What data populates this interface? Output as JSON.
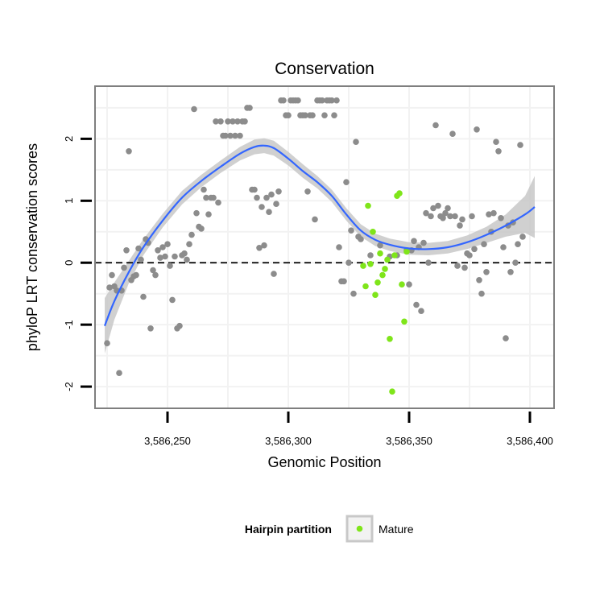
{
  "chart_data": {
    "type": "scatter",
    "title": "Conservation",
    "xlabel": "Genomic Position",
    "ylabel": "phyloP LRT conservation scores",
    "xlim": [
      3586220,
      3586410
    ],
    "ylim": [
      -2.35,
      2.85
    ],
    "x_ticks": [
      3586250,
      3586300,
      3586350,
      3586400
    ],
    "x_tick_labels": [
      "3,586,250",
      "3,586,300",
      "3,586,350",
      "3,586,400"
    ],
    "y_ticks": [
      -2,
      -1,
      0,
      1,
      2
    ],
    "y_tick_labels": [
      "-2",
      "-1",
      "0",
      "1",
      "2"
    ],
    "reference_line": {
      "y": 0,
      "style": "dashed",
      "color": "#000000"
    },
    "grid": true,
    "legend": {
      "title": "Hairpin partition",
      "placement": "bottom",
      "items": [
        {
          "label": "Mature",
          "color": "#7fe51a"
        }
      ]
    },
    "colors": {
      "other": "#8c8c8c",
      "mature": "#7fe51a",
      "smooth": "#3366ff",
      "ribbon": "#c8c8c8",
      "panel_border": "#7f7f7f",
      "grid": "#f2f2f2"
    },
    "series": [
      {
        "role": "other",
        "points": [
          [
            3586225,
            -1.3
          ],
          [
            3586226,
            -0.4
          ],
          [
            3586227,
            -0.2
          ],
          [
            3586228,
            -0.38
          ],
          [
            3586229,
            -0.45
          ],
          [
            3586230,
            -1.78
          ],
          [
            3586231,
            -0.45
          ],
          [
            3586232,
            -0.08
          ],
          [
            3586233,
            0.2
          ],
          [
            3586234,
            1.8
          ],
          [
            3586235,
            -0.28
          ],
          [
            3586236,
            -0.22
          ],
          [
            3586237,
            -0.2
          ],
          [
            3586238,
            0.23
          ],
          [
            3586239,
            0.05
          ],
          [
            3586240,
            -0.55
          ],
          [
            3586241,
            0.38
          ],
          [
            3586242,
            0.32
          ],
          [
            3586243,
            -1.06
          ],
          [
            3586244,
            -0.12
          ],
          [
            3586245,
            -0.2
          ],
          [
            3586246,
            0.2
          ],
          [
            3586247,
            0.08
          ],
          [
            3586248,
            0.25
          ],
          [
            3586249,
            0.1
          ],
          [
            3586250,
            0.3
          ],
          [
            3586251,
            -0.05
          ],
          [
            3586252,
            -0.6
          ],
          [
            3586253,
            0.1
          ],
          [
            3586254,
            -1.06
          ],
          [
            3586255,
            -1.02
          ],
          [
            3586256,
            0.12
          ],
          [
            3586257,
            0.15
          ],
          [
            3586258,
            0.05
          ],
          [
            3586259,
            0.3
          ],
          [
            3586260,
            0.45
          ],
          [
            3586261,
            2.48
          ],
          [
            3586262,
            0.8
          ],
          [
            3586263,
            0.58
          ],
          [
            3586264,
            0.55
          ],
          [
            3586265,
            1.18
          ],
          [
            3586266,
            1.05
          ],
          [
            3586267,
            0.78
          ],
          [
            3586268,
            1.05
          ],
          [
            3586269,
            1.05
          ],
          [
            3586270,
            2.28
          ],
          [
            3586271,
            0.97
          ],
          [
            3586272,
            2.28
          ],
          [
            3586273,
            2.05
          ],
          [
            3586274,
            2.05
          ],
          [
            3586275,
            2.28
          ],
          [
            3586276,
            2.05
          ],
          [
            3586277,
            2.28
          ],
          [
            3586278,
            2.05
          ],
          [
            3586279,
            2.28
          ],
          [
            3586280,
            2.05
          ],
          [
            3586281,
            2.28
          ],
          [
            3586282,
            2.28
          ],
          [
            3586283,
            2.5
          ],
          [
            3586284,
            2.5
          ],
          [
            3586285,
            1.18
          ],
          [
            3586286,
            1.18
          ],
          [
            3586287,
            1.05
          ],
          [
            3586288,
            0.24
          ],
          [
            3586289,
            0.9
          ],
          [
            3586290,
            0.28
          ],
          [
            3586291,
            1.05
          ],
          [
            3586292,
            0.82
          ],
          [
            3586293,
            1.1
          ],
          [
            3586294,
            -0.18
          ],
          [
            3586295,
            0.95
          ],
          [
            3586296,
            1.15
          ],
          [
            3586297,
            2.62
          ],
          [
            3586298,
            2.62
          ],
          [
            3586299,
            2.38
          ],
          [
            3586300,
            2.38
          ],
          [
            3586301,
            2.62
          ],
          [
            3586302,
            2.62
          ],
          [
            3586303,
            2.62
          ],
          [
            3586304,
            2.62
          ],
          [
            3586305,
            2.38
          ],
          [
            3586306,
            2.38
          ],
          [
            3586307,
            2.38
          ],
          [
            3586308,
            1.15
          ],
          [
            3586309,
            2.38
          ],
          [
            3586310,
            2.38
          ],
          [
            3586311,
            0.7
          ],
          [
            3586312,
            2.62
          ],
          [
            3586313,
            2.62
          ],
          [
            3586314,
            2.62
          ],
          [
            3586315,
            2.38
          ],
          [
            3586316,
            2.62
          ],
          [
            3586317,
            2.62
          ],
          [
            3586318,
            2.62
          ],
          [
            3586319,
            2.38
          ],
          [
            3586320,
            2.62
          ],
          [
            3586321,
            0.25
          ],
          [
            3586322,
            -0.3
          ],
          [
            3586323,
            -0.3
          ],
          [
            3586324,
            1.3
          ],
          [
            3586325,
            0.0
          ],
          [
            3586326,
            0.52
          ],
          [
            3586327,
            -0.5
          ],
          [
            3586328,
            1.95
          ],
          [
            3586329,
            0.42
          ],
          [
            3586330,
            0.38
          ],
          [
            3586334,
            0.12
          ],
          [
            3586338,
            0.28
          ],
          [
            3586342,
            0.1
          ],
          [
            3586345,
            0.12
          ],
          [
            3586349,
            0.2
          ],
          [
            3586350,
            -0.35
          ],
          [
            3586351,
            0.2
          ],
          [
            3586352,
            0.35
          ],
          [
            3586353,
            -0.68
          ],
          [
            3586354,
            0.25
          ],
          [
            3586355,
            -0.78
          ],
          [
            3586356,
            0.32
          ],
          [
            3586357,
            0.8
          ],
          [
            3586358,
            0.0
          ],
          [
            3586359,
            0.75
          ],
          [
            3586360,
            0.88
          ],
          [
            3586361,
            2.22
          ],
          [
            3586362,
            0.92
          ],
          [
            3586363,
            0.75
          ],
          [
            3586364,
            0.72
          ],
          [
            3586365,
            0.8
          ],
          [
            3586366,
            0.88
          ],
          [
            3586367,
            0.75
          ],
          [
            3586368,
            2.08
          ],
          [
            3586369,
            0.75
          ],
          [
            3586370,
            -0.05
          ],
          [
            3586371,
            0.6
          ],
          [
            3586372,
            0.7
          ],
          [
            3586373,
            -0.08
          ],
          [
            3586374,
            0.15
          ],
          [
            3586375,
            0.12
          ],
          [
            3586376,
            0.75
          ],
          [
            3586377,
            0.22
          ],
          [
            3586378,
            2.15
          ],
          [
            3586379,
            -0.28
          ],
          [
            3586380,
            -0.5
          ],
          [
            3586381,
            0.3
          ],
          [
            3586382,
            -0.15
          ],
          [
            3586383,
            0.78
          ],
          [
            3586384,
            0.5
          ],
          [
            3586385,
            0.8
          ],
          [
            3586386,
            1.95
          ],
          [
            3586387,
            1.8
          ],
          [
            3586388,
            0.72
          ],
          [
            3586389,
            0.25
          ],
          [
            3586390,
            -1.22
          ],
          [
            3586391,
            0.6
          ],
          [
            3586392,
            -0.15
          ],
          [
            3586393,
            0.65
          ],
          [
            3586394,
            0.0
          ],
          [
            3586395,
            0.3
          ],
          [
            3586396,
            1.9
          ],
          [
            3586397,
            0.42
          ]
        ]
      },
      {
        "role": "mature",
        "name": "Mature",
        "points": [
          [
            3586331,
            -0.05
          ],
          [
            3586332,
            -0.38
          ],
          [
            3586333,
            0.92
          ],
          [
            3586334,
            -0.02
          ],
          [
            3586335,
            0.5
          ],
          [
            3586336,
            -0.52
          ],
          [
            3586337,
            -0.32
          ],
          [
            3586338,
            0.15
          ],
          [
            3586339,
            -0.2
          ],
          [
            3586340,
            -0.1
          ],
          [
            3586341,
            0.05
          ],
          [
            3586342,
            -1.23
          ],
          [
            3586343,
            -2.08
          ],
          [
            3586344,
            0.12
          ],
          [
            3586345,
            1.08
          ],
          [
            3586346,
            1.12
          ],
          [
            3586347,
            -0.35
          ],
          [
            3586348,
            -0.95
          ],
          [
            3586349,
            0.18
          ]
        ]
      }
    ],
    "smooth": {
      "method": "loess",
      "points": [
        [
          3586224,
          -1.02
        ],
        [
          3586228,
          -0.62
        ],
        [
          3586234,
          -0.15
        ],
        [
          3586240,
          0.25
        ],
        [
          3586248,
          0.68
        ],
        [
          3586256,
          1.05
        ],
        [
          3586264,
          1.32
        ],
        [
          3586272,
          1.55
        ],
        [
          3586280,
          1.76
        ],
        [
          3586286,
          1.87
        ],
        [
          3586290,
          1.89
        ],
        [
          3586294,
          1.85
        ],
        [
          3586300,
          1.68
        ],
        [
          3586306,
          1.48
        ],
        [
          3586312,
          1.3
        ],
        [
          3586318,
          1.08
        ],
        [
          3586324,
          0.78
        ],
        [
          3586330,
          0.52
        ],
        [
          3586336,
          0.37
        ],
        [
          3586342,
          0.29
        ],
        [
          3586350,
          0.23
        ],
        [
          3586358,
          0.22
        ],
        [
          3586366,
          0.25
        ],
        [
          3586374,
          0.33
        ],
        [
          3586382,
          0.45
        ],
        [
          3586390,
          0.6
        ],
        [
          3586398,
          0.78
        ],
        [
          3586402,
          0.9
        ]
      ],
      "band_halfwidth": [
        0.45,
        0.3,
        0.18,
        0.13,
        0.11,
        0.11,
        0.1,
        0.1,
        0.11,
        0.12,
        0.12,
        0.12,
        0.11,
        0.11,
        0.1,
        0.1,
        0.1,
        0.1,
        0.1,
        0.1,
        0.1,
        0.1,
        0.1,
        0.11,
        0.13,
        0.18,
        0.3,
        0.5
      ]
    }
  }
}
